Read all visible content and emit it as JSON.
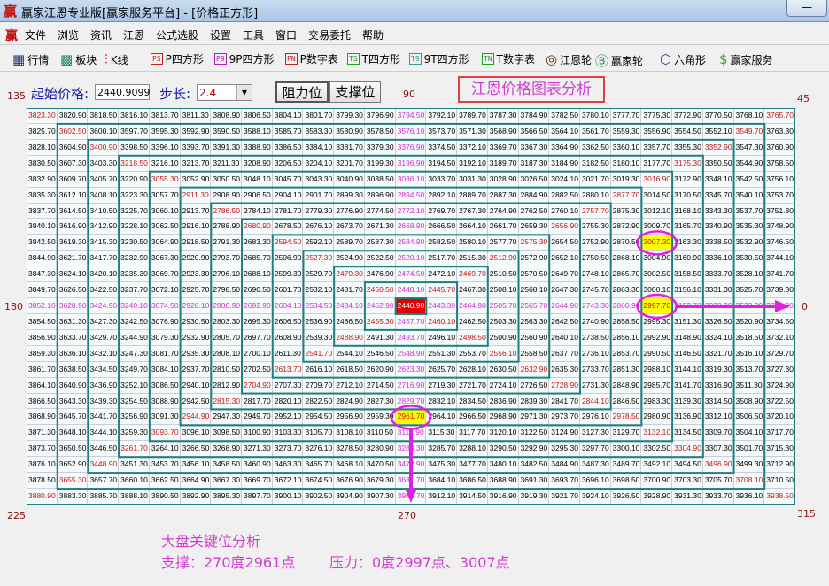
{
  "window": {
    "title": "赢家江恩专业版[赢家服务平台] - [价格正方形]",
    "logo": "赢",
    "minimize_label": "—"
  },
  "menu": [
    "文件",
    "浏览",
    "资讯",
    "江恩",
    "公式选股",
    "设置",
    "工具",
    "窗口",
    "交易委托",
    "帮助"
  ],
  "toolbar": [
    {
      "label": "行情",
      "icon": "table-icon",
      "glyph": "▦",
      "color": "#203080"
    },
    {
      "label": "板块",
      "icon": "blocks-icon",
      "glyph": "▩",
      "color": "#208060"
    },
    {
      "label": "K线",
      "icon": "candlestick-icon",
      "glyph": "⫶",
      "color": "#d02020"
    },
    {
      "label": "P四方形",
      "icon": "ps-icon",
      "glyph": "PS",
      "color": "#c02020"
    },
    {
      "label": "9P四方形",
      "icon": "p9-icon",
      "glyph": "P9",
      "color": "#b020b0"
    },
    {
      "label": "P数字表",
      "icon": "pn-icon",
      "glyph": "PN",
      "color": "#c02020"
    },
    {
      "label": "T四方形",
      "icon": "ts-icon",
      "glyph": "TS",
      "color": "#20a020"
    },
    {
      "label": "9T四方形",
      "icon": "t9-icon",
      "glyph": "T9",
      "color": "#20a0a0"
    },
    {
      "label": "T数字表",
      "icon": "tn-icon",
      "glyph": "TN",
      "color": "#20a020"
    },
    {
      "label": "江恩轮",
      "icon": "gann-wheel-icon",
      "glyph": "◎",
      "color": "#603010"
    },
    {
      "label": "赢家轮",
      "icon": "big-wheel-icon",
      "glyph": "Ⓑ",
      "color": "#208040"
    },
    {
      "label": "六角形",
      "icon": "hexagon-icon",
      "glyph": "⬡",
      "color": "#6020a0"
    },
    {
      "label": "赢家服务",
      "icon": "dollar-icon",
      "glyph": "$",
      "color": "#40a040"
    }
  ],
  "controls": {
    "start_label": "起始价格:",
    "start_value": "2440.9099",
    "step_label": "步长:",
    "step_value": "2.4",
    "resistance_button": "阻力位",
    "support_button": "支撑位"
  },
  "chart_title": "江恩价格图表分析",
  "degrees": {
    "d135": "135",
    "d90": "90",
    "d45": "45",
    "d180": "180",
    "d0": "0",
    "d225": "225",
    "d270": "270",
    "d315": "315"
  },
  "grid": {
    "highlight_values": [
      "3007.30",
      "2997.70",
      "2961.70"
    ],
    "colors": {
      "line": "#1f7f7f",
      "red": "#c01818",
      "cross": "#d030d0",
      "center": "#e00000",
      "highlight": "#ffff00",
      "annotation": "#e020e0"
    }
  },
  "analysis": {
    "heading": "大盘关键位分析",
    "support": "支撑：270度2961点",
    "resistance": "压力：0度2997点、3007点"
  }
}
